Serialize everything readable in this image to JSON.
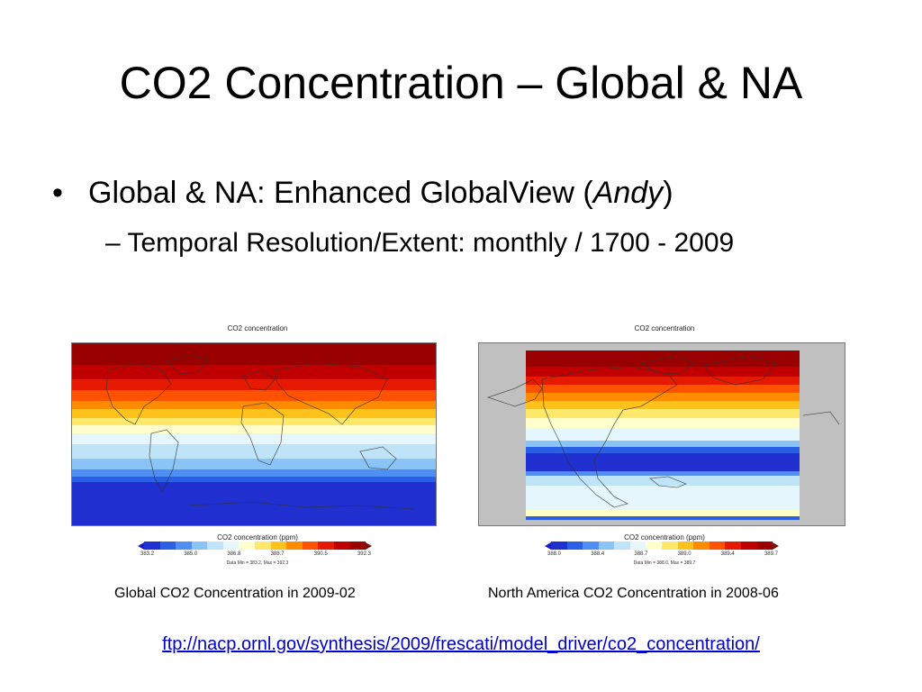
{
  "slide": {
    "title": "CO2 Concentration – Global & NA",
    "bullet": {
      "marker": "•",
      "text_prefix": "Global & NA: Enhanced GlobalView (",
      "text_italic": "Andy",
      "text_suffix": ")"
    },
    "sub_bullet": "– Temporal Resolution/Extent: monthly / 1700 - 2009",
    "link": "ftp://nacp.ornl.gov/synthesis/2009/frescati/model_driver/co2_concentration/"
  },
  "maps": [
    {
      "title": "CO2 concentration",
      "colorbar_title": "CO2 concentration (ppm)",
      "ticks": [
        "383.2",
        "385.0",
        "386.8",
        "388.7",
        "390.5",
        "392.3"
      ],
      "minmax": "Data Min = 383.2, Max = 392.3",
      "caption": "Global CO2 Concentration in 2009-02"
    },
    {
      "title": "CO2 concentration",
      "colorbar_title": "CO2 concentration (ppm)",
      "ticks": [
        "388.0",
        "388.4",
        "388.7",
        "389.0",
        "389.4",
        "389.7"
      ],
      "minmax": "Data Min = 388.0, Max = 389.7",
      "caption": "North America CO2 Concentration in 2008-06"
    }
  ],
  "colors": {
    "link": "#0000cc",
    "colorbar_low_end": "#1a1acc",
    "colorbar_high_end": "#7a1010",
    "palette": [
      "#1f2fd0",
      "#2a5fe6",
      "#4f8ef2",
      "#8ac4f6",
      "#bfe4fa",
      "#e6f6fd",
      "#ffffcc",
      "#ffe86a",
      "#ffc21a",
      "#ff8c00",
      "#ff5200",
      "#e51a00",
      "#c00000",
      "#990000"
    ]
  }
}
